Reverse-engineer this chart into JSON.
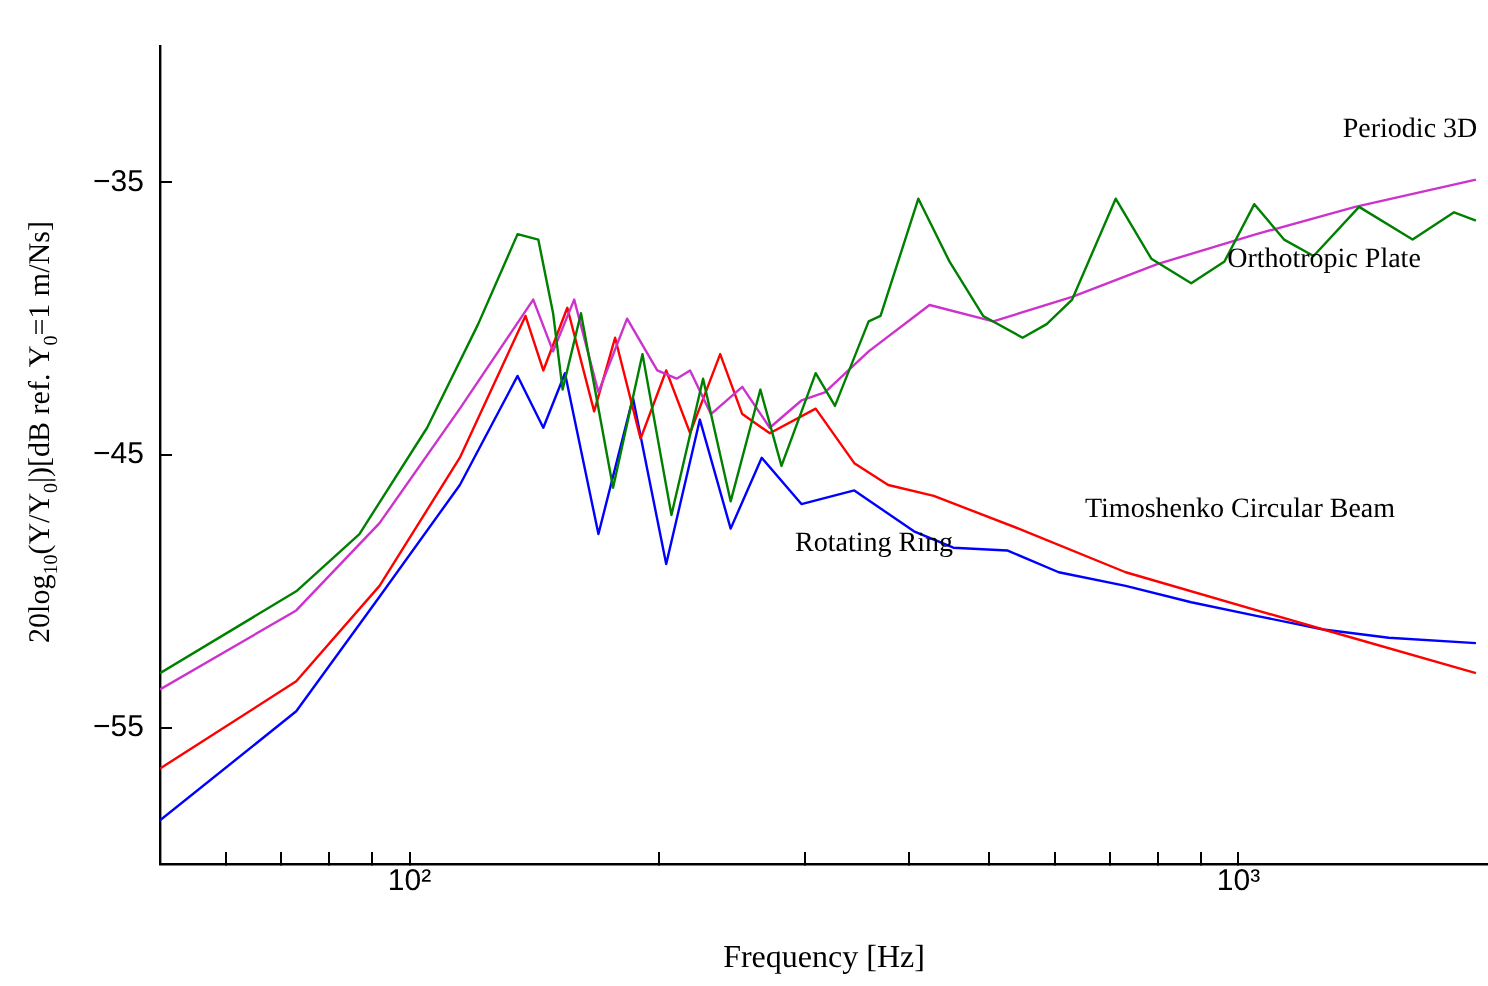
{
  "chart_data": {
    "type": "line",
    "xlabel": "Frequency [Hz]",
    "ylabel": "20log$_{10}$(Y/Y$_{0}$|)[dB ref. Y$_{0}$=1 m/Ns]",
    "log": "x",
    "grid": false,
    "xlim": [
      50,
      2000
    ],
    "ylim": [
      -60,
      -30
    ],
    "xticks": [
      {
        "value": 60,
        "label": null
      },
      {
        "value": 70,
        "label": null
      },
      {
        "value": 80,
        "label": null
      },
      {
        "value": 90,
        "label": null
      },
      {
        "value": 100,
        "label": "10²"
      },
      {
        "value": 200,
        "label": null
      },
      {
        "value": 300,
        "label": null
      },
      {
        "value": 400,
        "label": null
      },
      {
        "value": 500,
        "label": null
      },
      {
        "value": 600,
        "label": null
      },
      {
        "value": 700,
        "label": null
      },
      {
        "value": 800,
        "label": null
      },
      {
        "value": 900,
        "label": null
      },
      {
        "value": 1000,
        "label": "10³"
      }
    ],
    "yticks": [
      {
        "value": -35,
        "label": "−35"
      },
      {
        "value": -45,
        "label": "−45"
      },
      {
        "value": -55,
        "label": "−55"
      }
    ],
    "series": [
      {
        "name": "Orthotropic Plate",
        "color": "#008000",
        "x": [
          50,
          73,
          87,
          105,
          121,
          135,
          143,
          149,
          153,
          161,
          176,
          191,
          207,
          226,
          244,
          265,
          281,
          309,
          326,
          358,
          370,
          411,
          448,
          492,
          549,
          587,
          630,
          711,
          785,
          877,
          962,
          1045,
          1135,
          1232,
          1398,
          1622,
          1820,
          1934
        ],
        "values": [
          -53.0,
          -50.0,
          -47.9,
          -44.0,
          -40.2,
          -36.9,
          -37.1,
          -39.8,
          -42.6,
          -39.8,
          -46.2,
          -41.3,
          -47.2,
          -42.2,
          -46.7,
          -42.6,
          -45.4,
          -42.0,
          -43.2,
          -40.1,
          -39.9,
          -35.6,
          -37.9,
          -39.9,
          -40.7,
          -40.2,
          -39.3,
          -35.6,
          -37.8,
          -38.7,
          -37.9,
          -35.8,
          -37.1,
          -37.7,
          -35.9,
          -37.1,
          -36.1,
          -36.4
        ]
      },
      {
        "name": "Periodic 3D",
        "color": "#cc33cc",
        "x": [
          50,
          73,
          92,
          115,
          141,
          149,
          158,
          169,
          183,
          199,
          210,
          218,
          231,
          252,
          272,
          297,
          317,
          358,
          424,
          506,
          630,
          798,
          1051,
          1383,
          1934
        ],
        "values": [
          -53.6,
          -50.7,
          -47.5,
          -43.3,
          -39.3,
          -41.2,
          -39.3,
          -42.7,
          -40.0,
          -41.9,
          -42.2,
          -41.9,
          -43.5,
          -42.5,
          -44.0,
          -43.0,
          -42.7,
          -41.2,
          -39.5,
          -40.1,
          -39.2,
          -38.0,
          -36.9,
          -35.9,
          -34.9
        ]
      },
      {
        "name": "Timoshenko Circular Beam",
        "color": "#ff0000",
        "x": [
          50,
          73,
          92,
          115,
          138,
          145,
          155,
          167,
          177,
          190,
          204,
          218,
          237,
          252,
          272,
          309,
          344,
          378,
          429,
          543,
          731,
          1266,
          1934
        ],
        "values": [
          -56.5,
          -53.3,
          -49.8,
          -45.1,
          -39.9,
          -41.9,
          -39.6,
          -43.4,
          -40.7,
          -44.4,
          -41.9,
          -44.2,
          -41.3,
          -43.5,
          -44.2,
          -43.3,
          -45.3,
          -46.1,
          -46.5,
          -47.7,
          -49.3,
          -51.4,
          -53.0
        ]
      },
      {
        "name": "Rotating Ring",
        "color": "#0000ff",
        "x": [
          50,
          73,
          92,
          115,
          135,
          145,
          154,
          169,
          186,
          204,
          224,
          244,
          266,
          297,
          344,
          406,
          453,
          526,
          607,
          731,
          877,
          1051,
          1266,
          1518,
          1934
        ],
        "values": [
          -58.4,
          -54.4,
          -50.2,
          -46.1,
          -42.1,
          -44.0,
          -42.0,
          -47.9,
          -42.9,
          -49.0,
          -43.7,
          -47.7,
          -45.1,
          -46.8,
          -46.3,
          -47.8,
          -48.4,
          -48.5,
          -49.3,
          -49.8,
          -50.4,
          -50.9,
          -51.4,
          -51.7,
          -51.9
        ]
      }
    ]
  }
}
